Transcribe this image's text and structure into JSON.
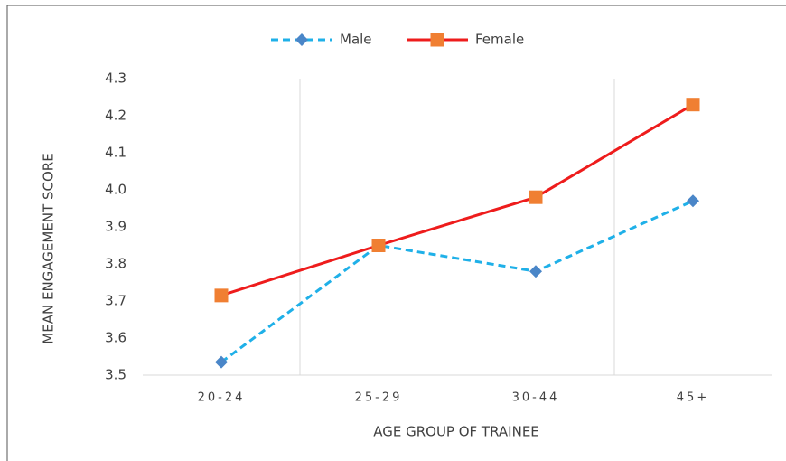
{
  "chart_data": {
    "type": "line",
    "categories": [
      "20-24",
      "25-29",
      "30-44",
      "45+"
    ],
    "series": [
      {
        "name": "Male",
        "color": "#1fb0e8",
        "marker_color": "#4a86c8",
        "marker": "diamond",
        "dash": true,
        "values": [
          3.535,
          3.85,
          3.78,
          3.97
        ]
      },
      {
        "name": "Female",
        "color": "#ee1c1c",
        "marker_color": "#f07f32",
        "marker": "square",
        "dash": false,
        "values": [
          3.715,
          3.85,
          3.98,
          4.23
        ]
      }
    ],
    "ylim": [
      3.5,
      4.3
    ],
    "yticks": [
      3.5,
      3.6,
      3.7,
      3.8,
      3.9,
      {
        "value": 4,
        "label": "4.0"
      },
      4.1,
      4.2,
      4.3
    ],
    "xlabel": "AGE GROUP OF TRAINEE",
    "ylabel": "MEAN ENGAGEMENT SCORE",
    "legend": "top"
  }
}
